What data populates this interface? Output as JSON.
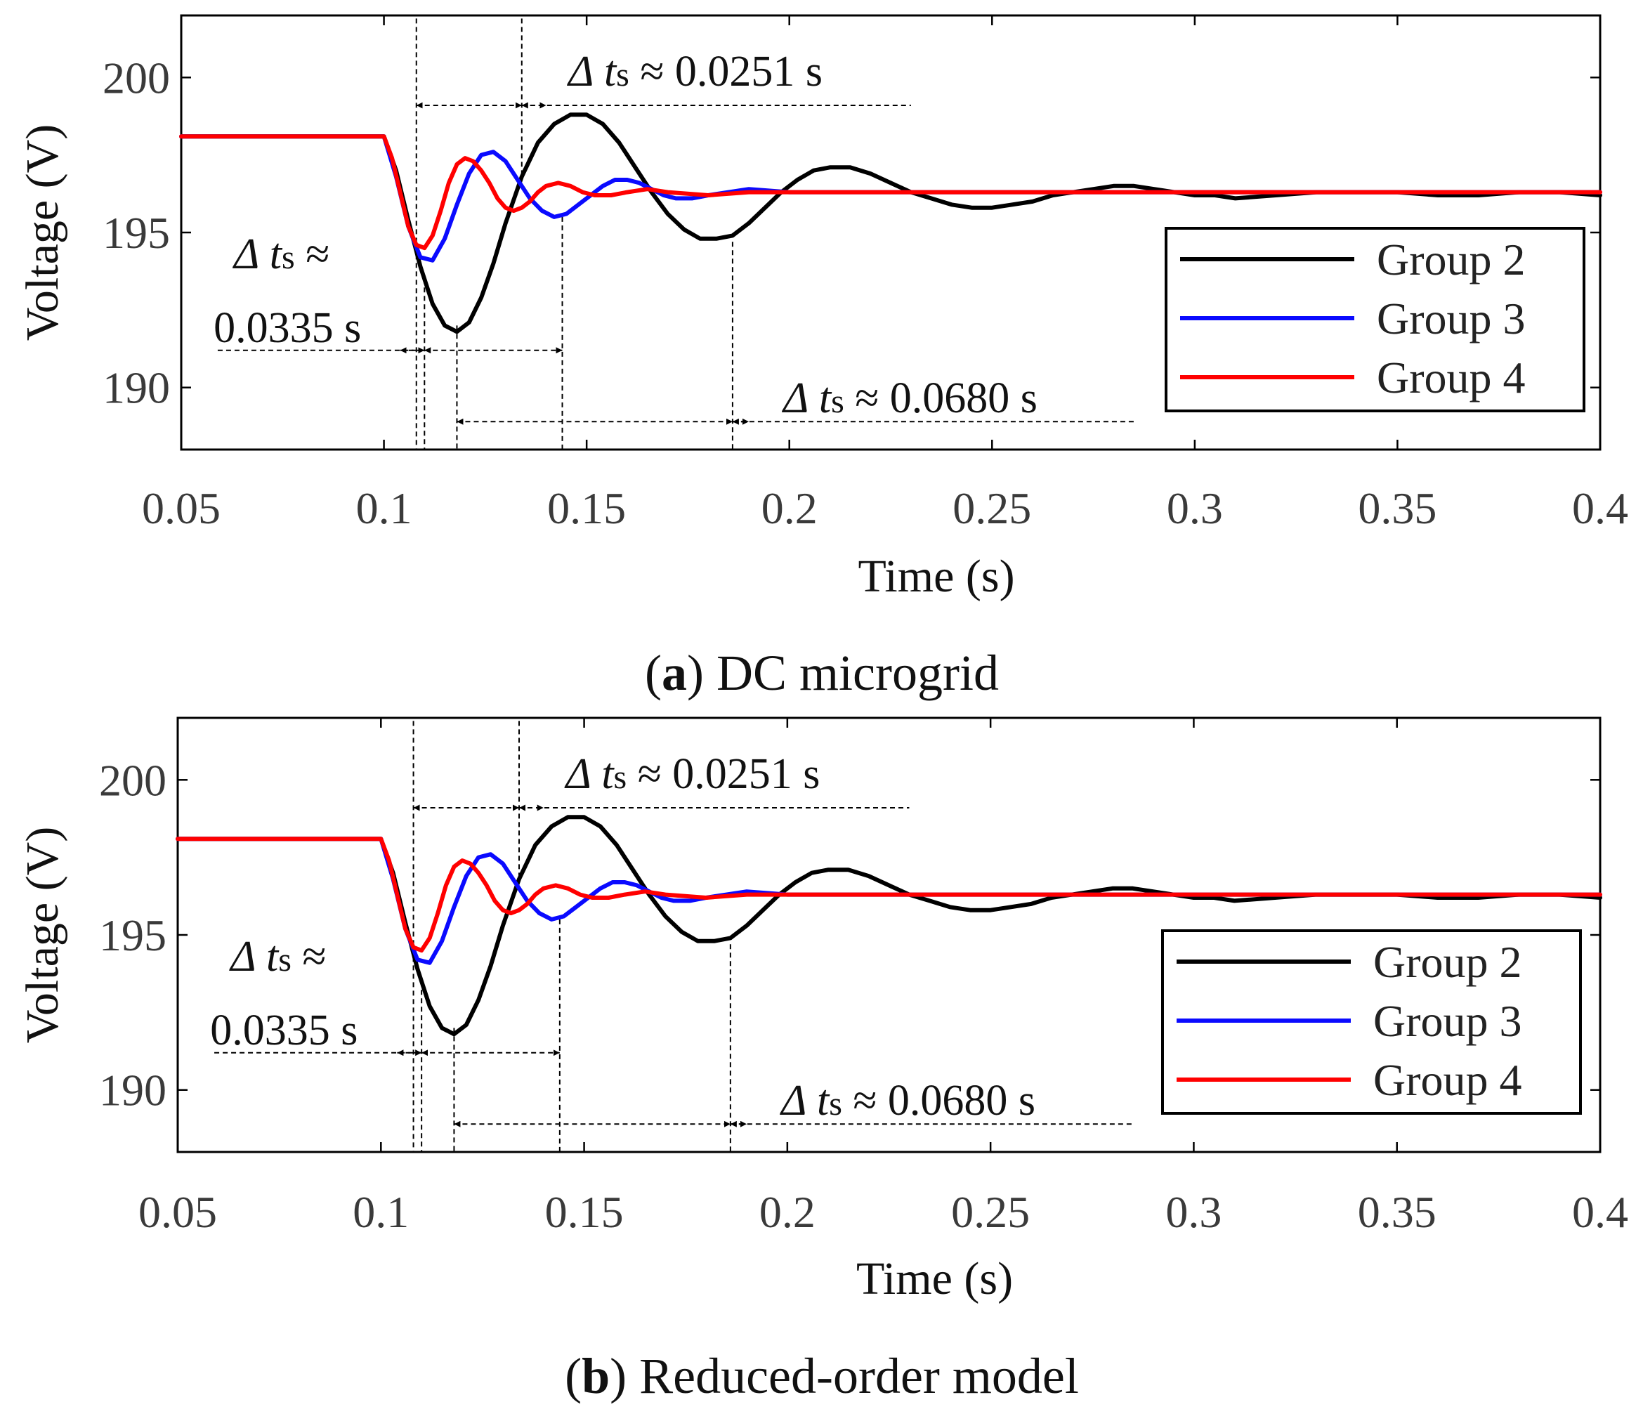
{
  "panels": [
    {
      "id": "a",
      "caption": {
        "letter": "a",
        "open": "(",
        "close": ")",
        "text": " DC microgrid"
      },
      "chart_data": {
        "type": "line",
        "title": "",
        "xlabel": "Time (s)",
        "ylabel": "Voltage (V)",
        "xlim": [
          0.05,
          0.4
        ],
        "ylim": [
          188,
          202
        ],
        "xticks": [
          0.05,
          0.1,
          0.15,
          0.2,
          0.25,
          0.3,
          0.35,
          0.4
        ],
        "xtick_labels": [
          "0.05",
          "0.1",
          "0.15",
          "0.2",
          "0.25",
          "0.3",
          "0.35",
          "0.4"
        ],
        "yticks": [
          190,
          195,
          200
        ],
        "ytick_labels": [
          "190",
          "195",
          "200"
        ],
        "legend_position": "right",
        "series": [
          {
            "name": "Group 2",
            "color": "#000000",
            "x": [
              0.05,
              0.1,
              0.103,
              0.106,
              0.109,
              0.112,
              0.115,
              0.118,
              0.121,
              0.124,
              0.127,
              0.13,
              0.134,
              0.138,
              0.142,
              0.146,
              0.15,
              0.154,
              0.158,
              0.162,
              0.166,
              0.17,
              0.174,
              0.178,
              0.182,
              0.186,
              0.19,
              0.194,
              0.198,
              0.202,
              0.206,
              0.21,
              0.215,
              0.22,
              0.225,
              0.23,
              0.235,
              0.24,
              0.245,
              0.25,
              0.255,
              0.26,
              0.265,
              0.27,
              0.275,
              0.28,
              0.285,
              0.29,
              0.295,
              0.3,
              0.305,
              0.31,
              0.32,
              0.33,
              0.34,
              0.35,
              0.36,
              0.37,
              0.38,
              0.39,
              0.4
            ],
            "y": [
              198.1,
              198.1,
              197.0,
              195.4,
              193.9,
              192.7,
              192.0,
              191.8,
              192.1,
              192.9,
              194.0,
              195.3,
              196.8,
              197.9,
              198.5,
              198.8,
              198.8,
              198.5,
              197.9,
              197.1,
              196.3,
              195.6,
              195.1,
              194.8,
              194.8,
              194.9,
              195.3,
              195.8,
              196.3,
              196.7,
              197.0,
              197.1,
              197.1,
              196.9,
              196.6,
              196.3,
              196.1,
              195.9,
              195.8,
              195.8,
              195.9,
              196.0,
              196.2,
              196.3,
              196.4,
              196.5,
              196.5,
              196.4,
              196.3,
              196.2,
              196.2,
              196.1,
              196.2,
              196.3,
              196.3,
              196.3,
              196.2,
              196.2,
              196.3,
              196.3,
              196.2
            ]
          },
          {
            "name": "Group 3",
            "color": "#0a0aff",
            "x": [
              0.05,
              0.1,
              0.103,
              0.106,
              0.109,
              0.112,
              0.115,
              0.118,
              0.121,
              0.124,
              0.127,
              0.13,
              0.133,
              0.136,
              0.139,
              0.142,
              0.145,
              0.148,
              0.151,
              0.154,
              0.157,
              0.16,
              0.163,
              0.166,
              0.169,
              0.172,
              0.176,
              0.18,
              0.185,
              0.19,
              0.2,
              0.21,
              0.22,
              0.25,
              0.3,
              0.35,
              0.4
            ],
            "y": [
              198.1,
              198.1,
              196.8,
              195.2,
              194.2,
              194.1,
              194.8,
              195.9,
              196.9,
              197.5,
              197.6,
              197.3,
              196.7,
              196.1,
              195.7,
              195.5,
              195.6,
              195.9,
              196.2,
              196.5,
              196.7,
              196.7,
              196.6,
              196.4,
              196.2,
              196.1,
              196.1,
              196.2,
              196.3,
              196.4,
              196.3,
              196.3,
              196.3,
              196.3,
              196.3,
              196.3,
              196.3
            ]
          },
          {
            "name": "Group 4",
            "color": "#ff0000",
            "x": [
              0.05,
              0.1,
              0.102,
              0.104,
              0.106,
              0.108,
              0.11,
              0.112,
              0.114,
              0.116,
              0.118,
              0.12,
              0.122,
              0.124,
              0.126,
              0.128,
              0.13,
              0.132,
              0.134,
              0.136,
              0.138,
              0.14,
              0.143,
              0.146,
              0.149,
              0.152,
              0.156,
              0.16,
              0.165,
              0.17,
              0.18,
              0.19,
              0.2,
              0.25,
              0.3,
              0.35,
              0.4
            ],
            "y": [
              198.1,
              198.1,
              197.4,
              196.3,
              195.2,
              194.6,
              194.5,
              194.9,
              195.7,
              196.6,
              197.2,
              197.4,
              197.3,
              197.0,
              196.6,
              196.1,
              195.8,
              195.7,
              195.8,
              196.0,
              196.3,
              196.5,
              196.6,
              196.5,
              196.3,
              196.2,
              196.2,
              196.3,
              196.4,
              196.3,
              196.2,
              196.3,
              196.3,
              196.3,
              196.3,
              196.3,
              196.3
            ]
          }
        ],
        "annotations": [
          {
            "text": "≈ 0.0251 s",
            "prefix": "Δ",
            "var": "t",
            "sub": "s"
          },
          {
            "text": "≈",
            "line2": "0.0335 s",
            "prefix": "Δ",
            "var": "t",
            "sub": "s"
          },
          {
            "text": "≈ 0.0680 s",
            "prefix": "Δ",
            "var": "t",
            "sub": "s"
          }
        ]
      }
    },
    {
      "id": "b",
      "caption": {
        "letter": "b",
        "open": "(",
        "close": ")",
        "text": " Reduced-order model"
      },
      "chart_data": {
        "type": "line",
        "title": "",
        "xlabel": "Time (s)",
        "ylabel": "Voltage (V)",
        "xlim": [
          0.05,
          0.4
        ],
        "ylim": [
          188,
          202
        ],
        "xticks": [
          0.05,
          0.1,
          0.15,
          0.2,
          0.25,
          0.3,
          0.35,
          0.4
        ],
        "xtick_labels": [
          "0.05",
          "0.1",
          "0.15",
          "0.2",
          "0.25",
          "0.3",
          "0.35",
          "0.4"
        ],
        "yticks": [
          190,
          195,
          200
        ],
        "ytick_labels": [
          "190",
          "195",
          "200"
        ],
        "legend_position": "right",
        "series": [
          {
            "name": "Group 2",
            "color": "#000000",
            "x": [
              0.05,
              0.1,
              0.103,
              0.106,
              0.109,
              0.112,
              0.115,
              0.118,
              0.121,
              0.124,
              0.127,
              0.13,
              0.134,
              0.138,
              0.142,
              0.146,
              0.15,
              0.154,
              0.158,
              0.162,
              0.166,
              0.17,
              0.174,
              0.178,
              0.182,
              0.186,
              0.19,
              0.194,
              0.198,
              0.202,
              0.206,
              0.21,
              0.215,
              0.22,
              0.225,
              0.23,
              0.235,
              0.24,
              0.245,
              0.25,
              0.255,
              0.26,
              0.265,
              0.27,
              0.275,
              0.28,
              0.285,
              0.29,
              0.295,
              0.3,
              0.305,
              0.31,
              0.32,
              0.33,
              0.34,
              0.35,
              0.36,
              0.37,
              0.38,
              0.39,
              0.4
            ],
            "y": [
              198.1,
              198.1,
              197.0,
              195.4,
              193.9,
              192.7,
              192.0,
              191.8,
              192.1,
              192.9,
              194.0,
              195.3,
              196.8,
              197.9,
              198.5,
              198.8,
              198.8,
              198.5,
              197.9,
              197.1,
              196.3,
              195.6,
              195.1,
              194.8,
              194.8,
              194.9,
              195.3,
              195.8,
              196.3,
              196.7,
              197.0,
              197.1,
              197.1,
              196.9,
              196.6,
              196.3,
              196.1,
              195.9,
              195.8,
              195.8,
              195.9,
              196.0,
              196.2,
              196.3,
              196.4,
              196.5,
              196.5,
              196.4,
              196.3,
              196.2,
              196.2,
              196.1,
              196.2,
              196.3,
              196.3,
              196.3,
              196.2,
              196.2,
              196.3,
              196.3,
              196.2
            ]
          },
          {
            "name": "Group 3",
            "color": "#0a0aff",
            "x": [
              0.05,
              0.1,
              0.103,
              0.106,
              0.109,
              0.112,
              0.115,
              0.118,
              0.121,
              0.124,
              0.127,
              0.13,
              0.133,
              0.136,
              0.139,
              0.142,
              0.145,
              0.148,
              0.151,
              0.154,
              0.157,
              0.16,
              0.163,
              0.166,
              0.169,
              0.172,
              0.176,
              0.18,
              0.185,
              0.19,
              0.2,
              0.21,
              0.22,
              0.25,
              0.3,
              0.35,
              0.4
            ],
            "y": [
              198.1,
              198.1,
              196.8,
              195.2,
              194.2,
              194.1,
              194.8,
              195.9,
              196.9,
              197.5,
              197.6,
              197.3,
              196.7,
              196.1,
              195.7,
              195.5,
              195.6,
              195.9,
              196.2,
              196.5,
              196.7,
              196.7,
              196.6,
              196.4,
              196.2,
              196.1,
              196.1,
              196.2,
              196.3,
              196.4,
              196.3,
              196.3,
              196.3,
              196.3,
              196.3,
              196.3,
              196.3
            ]
          },
          {
            "name": "Group 4",
            "color": "#ff0000",
            "x": [
              0.05,
              0.1,
              0.102,
              0.104,
              0.106,
              0.108,
              0.11,
              0.112,
              0.114,
              0.116,
              0.118,
              0.12,
              0.122,
              0.124,
              0.126,
              0.128,
              0.13,
              0.132,
              0.134,
              0.136,
              0.138,
              0.14,
              0.143,
              0.146,
              0.149,
              0.152,
              0.156,
              0.16,
              0.165,
              0.17,
              0.18,
              0.19,
              0.2,
              0.25,
              0.3,
              0.35,
              0.4
            ],
            "y": [
              198.1,
              198.1,
              197.4,
              196.3,
              195.2,
              194.6,
              194.5,
              194.9,
              195.7,
              196.6,
              197.2,
              197.4,
              197.3,
              197.0,
              196.6,
              196.1,
              195.8,
              195.7,
              195.8,
              196.0,
              196.3,
              196.5,
              196.6,
              196.5,
              196.3,
              196.2,
              196.2,
              196.3,
              196.4,
              196.3,
              196.2,
              196.3,
              196.3,
              196.3,
              196.3,
              196.3,
              196.3
            ]
          }
        ],
        "annotations": [
          {
            "text": "≈ 0.0251 s",
            "prefix": "Δ",
            "var": "t",
            "sub": "s"
          },
          {
            "text": "≈",
            "line2": "0.0335 s",
            "prefix": "Δ",
            "var": "t",
            "sub": "s"
          },
          {
            "text": "≈ 0.0680 s",
            "prefix": "Δ",
            "var": "t",
            "sub": "s"
          }
        ]
      }
    }
  ]
}
